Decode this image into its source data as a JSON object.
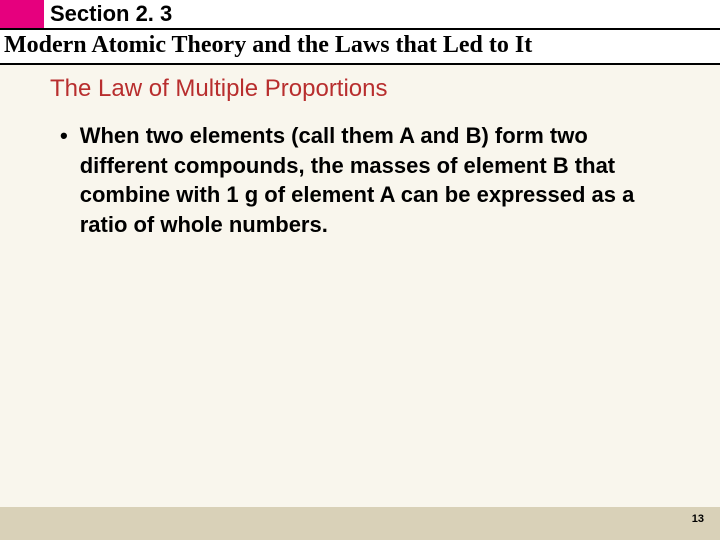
{
  "header": {
    "accent_block_color": "#e6007e",
    "section_label": "Section 2. 3",
    "section_label_fontsize": 22,
    "section_label_color": "#000000",
    "chapter_title": "Modern Atomic Theory and the Laws that Led to It",
    "chapter_title_fontsize": 24,
    "chapter_title_color": "#000000",
    "rule_color": "#000000",
    "header_bg": "#ffffff"
  },
  "content": {
    "background_color": "#f9f6ed",
    "topic_title": "The Law of Multiple Proportions",
    "topic_title_color": "#b82e2e",
    "topic_title_fontsize": 24,
    "bullets": [
      {
        "text": "When two elements (call them A and B) form two different compounds, the masses of element B that combine with 1 g of element A can be expressed as a ratio of whole numbers."
      }
    ],
    "bullet_fontsize": 22,
    "bullet_color": "#000000",
    "bullet_marker": "•"
  },
  "footer": {
    "background_color": "#d9d1b8",
    "page_number": "13",
    "page_number_fontsize": 11,
    "page_number_color": "#000000"
  }
}
